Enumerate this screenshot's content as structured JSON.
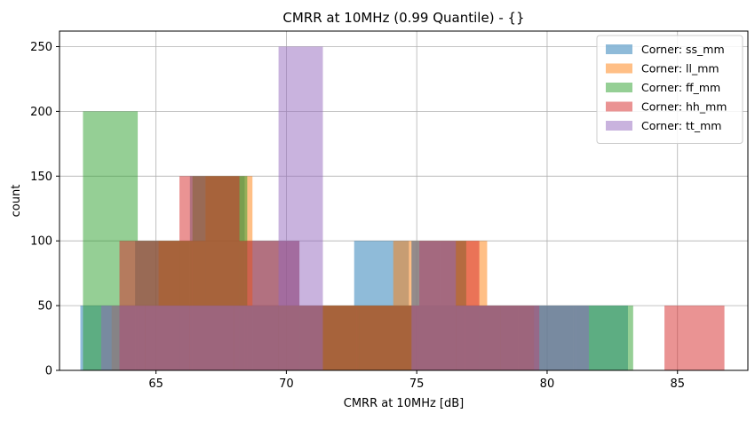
{
  "chart_data": {
    "type": "bar",
    "subtype": "overlapping-histogram",
    "title": "CMRR at 10MHz (0.99 Quantile) - {}",
    "xlabel": "CMRR at 10MHz [dB]",
    "ylabel": "count",
    "xlim": [
      61.3,
      87.7
    ],
    "ylim": [
      0,
      262
    ],
    "xticks": [
      65,
      70,
      75,
      80,
      85
    ],
    "yticks": [
      0,
      50,
      100,
      150,
      200,
      250
    ],
    "grid": true,
    "legend_position": "top-right",
    "series": [
      {
        "name": "Corner: ss_mm",
        "color": "#1f77b4",
        "bins": [
          {
            "x0": 62.1,
            "x1": 64.2,
            "value": 50
          },
          {
            "x0": 64.2,
            "x1": 66.3,
            "value": 100
          },
          {
            "x0": 66.3,
            "x1": 68.4,
            "value": 150
          },
          {
            "x0": 68.4,
            "x1": 70.5,
            "value": 100
          },
          {
            "x0": 70.5,
            "x1": 72.6,
            "value": 50
          },
          {
            "x0": 72.6,
            "x1": 74.7,
            "value": 100
          },
          {
            "x0": 74.7,
            "x1": 76.8,
            "value": 50
          },
          {
            "x0": 76.8,
            "x1": 78.9,
            "value": 50
          },
          {
            "x0": 78.9,
            "x1": 81.0,
            "value": 50
          },
          {
            "x0": 81.0,
            "x1": 83.1,
            "value": 50
          }
        ]
      },
      {
        "name": "Corner: ll_mm",
        "color": "#ff7f0e",
        "bins": [
          {
            "x0": 63.3,
            "x1": 65.1,
            "value": 50
          },
          {
            "x0": 65.1,
            "x1": 66.9,
            "value": 100
          },
          {
            "x0": 66.9,
            "x1": 68.7,
            "value": 150
          },
          {
            "x0": 68.7,
            "x1": 70.5,
            "value": 50
          },
          {
            "x0": 70.5,
            "x1": 72.3,
            "value": 50
          },
          {
            "x0": 72.3,
            "x1": 74.1,
            "value": 50
          },
          {
            "x0": 74.1,
            "x1": 75.9,
            "value": 100
          },
          {
            "x0": 75.9,
            "x1": 77.7,
            "value": 100
          },
          {
            "x0": 77.7,
            "x1": 79.5,
            "value": 50
          }
        ]
      },
      {
        "name": "Corner: ff_mm",
        "color": "#2ca02c",
        "bins": [
          {
            "x0": 62.2,
            "x1": 64.3,
            "value": 200
          },
          {
            "x0": 64.3,
            "x1": 66.4,
            "value": 100
          },
          {
            "x0": 66.4,
            "x1": 68.5,
            "value": 150
          },
          {
            "x0": 68.5,
            "x1": 70.6,
            "value": 50
          },
          {
            "x0": 70.6,
            "x1": 72.7,
            "value": 50
          },
          {
            "x0": 72.7,
            "x1": 74.8,
            "value": 50
          },
          {
            "x0": 74.8,
            "x1": 76.9,
            "value": 100
          },
          {
            "x0": 76.9,
            "x1": 79.0,
            "value": 50
          },
          {
            "x0": 79.0,
            "x1": 81.1,
            "value": 50
          },
          {
            "x0": 81.1,
            "x1": 83.3,
            "value": 50
          }
        ]
      },
      {
        "name": "Corner: hh_mm",
        "color": "#d62728",
        "bins": [
          {
            "x0": 63.6,
            "x1": 65.9,
            "value": 100
          },
          {
            "x0": 65.9,
            "x1": 68.2,
            "value": 150
          },
          {
            "x0": 68.2,
            "x1": 70.5,
            "value": 100
          },
          {
            "x0": 70.5,
            "x1": 72.8,
            "value": 50
          },
          {
            "x0": 72.8,
            "x1": 75.1,
            "value": 50
          },
          {
            "x0": 75.1,
            "x1": 77.4,
            "value": 100
          },
          {
            "x0": 77.4,
            "x1": 79.7,
            "value": 50
          },
          {
            "x0": 79.7,
            "x1": 82.0,
            "value": 0
          },
          {
            "x0": 82.0,
            "x1": 84.3,
            "value": 0
          },
          {
            "x0": 84.5,
            "x1": 86.8,
            "value": 50
          }
        ]
      },
      {
        "name": "Corner: tt_mm",
        "color": "#9467bd",
        "bins": [
          {
            "x0": 62.9,
            "x1": 64.6,
            "value": 50
          },
          {
            "x0": 64.6,
            "x1": 66.3,
            "value": 50
          },
          {
            "x0": 66.3,
            "x1": 68.0,
            "value": 50
          },
          {
            "x0": 68.0,
            "x1": 69.7,
            "value": 50
          },
          {
            "x0": 69.7,
            "x1": 71.4,
            "value": 250
          },
          {
            "x0": 71.4,
            "x1": 73.1,
            "value": 0
          },
          {
            "x0": 73.1,
            "x1": 74.8,
            "value": 0
          },
          {
            "x0": 74.8,
            "x1": 76.5,
            "value": 100
          },
          {
            "x0": 76.5,
            "x1": 78.2,
            "value": 50
          },
          {
            "x0": 78.2,
            "x1": 79.9,
            "value": 50
          },
          {
            "x0": 79.9,
            "x1": 81.6,
            "value": 50
          }
        ]
      }
    ]
  }
}
